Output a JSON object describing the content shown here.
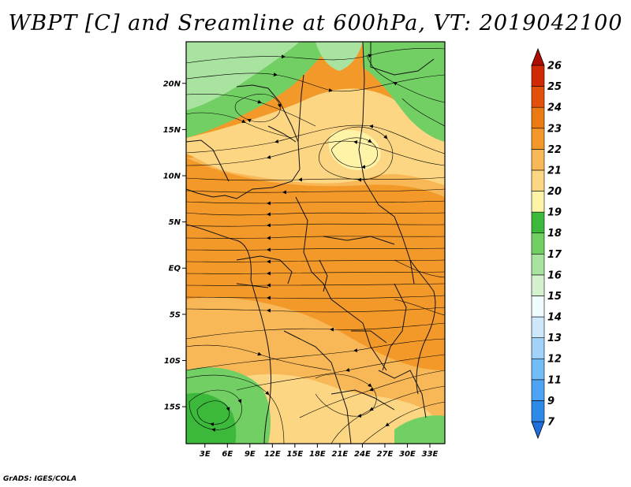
{
  "title": "WBPT [C] and Sreamline at 600hPa, VT: 2019042100",
  "credit": "GrADS: IGES/COLA",
  "map": {
    "lat_ticks": [
      "20N",
      "15N",
      "10N",
      "5N",
      "EQ",
      "5S",
      "10S",
      "15S"
    ],
    "lon_ticks": [
      "3E",
      "6E",
      "9E",
      "12E",
      "15E",
      "18E",
      "21E",
      "24E",
      "27E",
      "30E",
      "33E"
    ],
    "lat_range": [
      -19,
      24.5
    ],
    "lon_range": [
      0.5,
      35
    ],
    "field": "wet-bulb potential temperature",
    "overlay": "streamlines"
  },
  "colorbar": {
    "levels": [
      "7",
      "9",
      "11",
      "12",
      "13",
      "14",
      "15",
      "16",
      "17",
      "18",
      "19",
      "20",
      "21",
      "22",
      "23",
      "24",
      "25",
      "26"
    ],
    "colors": [
      "#1e6edb",
      "#2d8ae8",
      "#4ea3f2",
      "#72bcf8",
      "#a0d2fa",
      "#cde8fb",
      "#f0fbff",
      "#d5f2cf",
      "#a9e3a0",
      "#72cf64",
      "#3cb83a",
      "#fff3a8",
      "#fcd682",
      "#f8b857",
      "#f3992a",
      "#ec7a14",
      "#e3500c",
      "#d02a05",
      "#b00d02"
    ]
  },
  "colors": {
    "green_dark": "#3cb83a",
    "green_mid": "#72cf64",
    "green_light": "#a9e3a0",
    "orange_main": "#f3992a",
    "orange_light": "#f8b857",
    "yellow": "#fcd682",
    "pale_yellow": "#fff3a8"
  }
}
